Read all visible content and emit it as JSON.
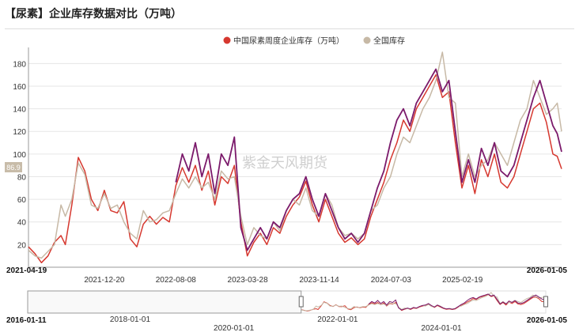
{
  "title": "【尿素】企业库存数据对比（万吨）",
  "watermark": "紫金天风期货",
  "last_value_label": "86.9",
  "chart_data": {
    "type": "line",
    "title": "【尿素】企业库存数据对比（万吨）",
    "xlabel": "",
    "ylabel": "",
    "ylim": [
      0,
      190
    ],
    "yticks": [
      20,
      40,
      60,
      80,
      100,
      120,
      140,
      160,
      180
    ],
    "grid": true,
    "legend": "top-right",
    "x_range": [
      "2021-04-19",
      "2026-01-05"
    ],
    "x_ticks": [
      "2021-04-19",
      "2021-12-20",
      "2022-08-08",
      "2023-03-28",
      "2023-11-14",
      "2024-07-03",
      "2025-02-19",
      "2026-01-05"
    ],
    "navigator": {
      "range": [
        "2016-01-11",
        "2026-01-05"
      ],
      "ticks": [
        "2016-01-11",
        "2018-01-01",
        "2020-01-01",
        "2022-01-01",
        "2024-01-01",
        "2026-01-05"
      ]
    },
    "series": [
      {
        "name": "中国尿素周度企业库存（万吨）",
        "color": "#d6382f",
        "points": [
          [
            "2021-04-19",
            18
          ],
          [
            "2021-05-10",
            12
          ],
          [
            "2021-05-31",
            4
          ],
          [
            "2021-06-21",
            10
          ],
          [
            "2021-07-12",
            22
          ],
          [
            "2021-08-02",
            28
          ],
          [
            "2021-08-16",
            20
          ],
          [
            "2021-09-06",
            55
          ],
          [
            "2021-09-27",
            97
          ],
          [
            "2021-10-18",
            85
          ],
          [
            "2021-11-08",
            60
          ],
          [
            "2021-11-29",
            50
          ],
          [
            "2021-12-20",
            68
          ],
          [
            "2022-01-10",
            50
          ],
          [
            "2022-01-31",
            48
          ],
          [
            "2022-02-21",
            58
          ],
          [
            "2022-03-14",
            25
          ],
          [
            "2022-04-04",
            18
          ],
          [
            "2022-04-25",
            38
          ],
          [
            "2022-05-16",
            45
          ],
          [
            "2022-06-06",
            38
          ],
          [
            "2022-06-27",
            44
          ],
          [
            "2022-07-18",
            40
          ],
          [
            "2022-08-08",
            72
          ],
          [
            "2022-08-29",
            88
          ],
          [
            "2022-09-19",
            75
          ],
          [
            "2022-10-10",
            90
          ],
          [
            "2022-10-31",
            68
          ],
          [
            "2022-11-21",
            85
          ],
          [
            "2022-12-12",
            55
          ],
          [
            "2023-01-02",
            80
          ],
          [
            "2023-01-23",
            74
          ],
          [
            "2023-02-13",
            90
          ],
          [
            "2023-03-06",
            40
          ],
          [
            "2023-03-27",
            10
          ],
          [
            "2023-04-17",
            22
          ],
          [
            "2023-05-08",
            30
          ],
          [
            "2023-05-29",
            20
          ],
          [
            "2023-06-19",
            35
          ],
          [
            "2023-07-10",
            30
          ],
          [
            "2023-07-31",
            45
          ],
          [
            "2023-08-21",
            55
          ],
          [
            "2023-09-11",
            62
          ],
          [
            "2023-10-02",
            76
          ],
          [
            "2023-10-23",
            55
          ],
          [
            "2023-11-13",
            40
          ],
          [
            "2023-12-04",
            60
          ],
          [
            "2023-12-25",
            45
          ],
          [
            "2024-01-15",
            30
          ],
          [
            "2024-02-05",
            22
          ],
          [
            "2024-02-26",
            26
          ],
          [
            "2024-03-18",
            20
          ],
          [
            "2024-04-08",
            25
          ],
          [
            "2024-04-29",
            45
          ],
          [
            "2024-05-20",
            60
          ],
          [
            "2024-06-10",
            75
          ],
          [
            "2024-07-01",
            95
          ],
          [
            "2024-07-22",
            110
          ],
          [
            "2024-08-12",
            130
          ],
          [
            "2024-09-02",
            120
          ],
          [
            "2024-09-23",
            140
          ],
          [
            "2024-10-14",
            150
          ],
          [
            "2024-11-04",
            160
          ],
          [
            "2024-11-25",
            170
          ],
          [
            "2024-12-16",
            150
          ],
          [
            "2025-01-06",
            155
          ],
          [
            "2025-01-27",
            110
          ],
          [
            "2025-02-17",
            70
          ],
          [
            "2025-03-10",
            90
          ],
          [
            "2025-03-31",
            65
          ],
          [
            "2025-04-21",
            95
          ],
          [
            "2025-05-12",
            80
          ],
          [
            "2025-06-02",
            100
          ],
          [
            "2025-06-23",
            75
          ],
          [
            "2025-07-14",
            70
          ],
          [
            "2025-08-04",
            80
          ],
          [
            "2025-08-25",
            100
          ],
          [
            "2025-09-15",
            120
          ],
          [
            "2025-10-06",
            140
          ],
          [
            "2025-10-27",
            145
          ],
          [
            "2025-11-17",
            128
          ],
          [
            "2025-12-08",
            100
          ],
          [
            "2025-12-22",
            98
          ],
          [
            "2026-01-05",
            86.9
          ]
        ]
      },
      {
        "name": "全国库存",
        "color": "#c7b9a6",
        "points": [
          [
            "2021-04-19",
            15
          ],
          [
            "2021-05-10",
            10
          ],
          [
            "2021-05-31",
            8
          ],
          [
            "2021-06-21",
            14
          ],
          [
            "2021-07-12",
            20
          ],
          [
            "2021-08-02",
            55
          ],
          [
            "2021-08-16",
            45
          ],
          [
            "2021-09-06",
            60
          ],
          [
            "2021-09-27",
            92
          ],
          [
            "2021-10-18",
            82
          ],
          [
            "2021-11-08",
            55
          ],
          [
            "2021-11-29",
            52
          ],
          [
            "2021-12-20",
            65
          ],
          [
            "2022-01-10",
            52
          ],
          [
            "2022-01-31",
            55
          ],
          [
            "2022-02-21",
            40
          ],
          [
            "2022-03-14",
            30
          ],
          [
            "2022-04-04",
            25
          ],
          [
            "2022-04-25",
            50
          ],
          [
            "2022-05-16",
            40
          ],
          [
            "2022-06-06",
            42
          ],
          [
            "2022-06-27",
            48
          ],
          [
            "2022-07-18",
            50
          ],
          [
            "2022-08-08",
            65
          ],
          [
            "2022-08-29",
            78
          ],
          [
            "2022-09-19",
            70
          ],
          [
            "2022-10-10",
            80
          ],
          [
            "2022-10-31",
            70
          ],
          [
            "2022-11-21",
            75
          ],
          [
            "2022-12-12",
            60
          ],
          [
            "2023-01-02",
            85
          ],
          [
            "2023-01-23",
            78
          ],
          [
            "2023-02-13",
            80
          ],
          [
            "2023-03-06",
            45
          ],
          [
            "2023-03-27",
            20
          ],
          [
            "2023-04-17",
            35
          ],
          [
            "2023-05-08",
            28
          ],
          [
            "2023-05-29",
            25
          ],
          [
            "2023-06-19",
            40
          ],
          [
            "2023-07-10",
            32
          ],
          [
            "2023-07-31",
            50
          ],
          [
            "2023-08-21",
            60
          ],
          [
            "2023-09-11",
            55
          ],
          [
            "2023-10-02",
            70
          ],
          [
            "2023-10-23",
            50
          ],
          [
            "2023-11-13",
            45
          ],
          [
            "2023-12-04",
            65
          ],
          [
            "2023-12-25",
            55
          ],
          [
            "2024-01-15",
            35
          ],
          [
            "2024-02-05",
            28
          ],
          [
            "2024-02-26",
            30
          ],
          [
            "2024-03-18",
            25
          ],
          [
            "2024-04-08",
            30
          ],
          [
            "2024-04-29",
            50
          ],
          [
            "2024-05-20",
            55
          ],
          [
            "2024-06-10",
            70
          ],
          [
            "2024-07-01",
            80
          ],
          [
            "2024-07-22",
            100
          ],
          [
            "2024-08-12",
            115
          ],
          [
            "2024-09-02",
            110
          ],
          [
            "2024-09-23",
            125
          ],
          [
            "2024-10-14",
            140
          ],
          [
            "2024-11-04",
            150
          ],
          [
            "2024-11-25",
            165
          ],
          [
            "2024-12-16",
            190
          ],
          [
            "2025-01-06",
            150
          ],
          [
            "2025-01-27",
            145
          ],
          [
            "2025-02-17",
            80
          ],
          [
            "2025-03-10",
            100
          ],
          [
            "2025-03-31",
            80
          ],
          [
            "2025-04-21",
            90
          ],
          [
            "2025-05-12",
            95
          ],
          [
            "2025-06-02",
            110
          ],
          [
            "2025-06-23",
            100
          ],
          [
            "2025-07-14",
            90
          ],
          [
            "2025-08-04",
            110
          ],
          [
            "2025-08-25",
            130
          ],
          [
            "2025-09-15",
            140
          ],
          [
            "2025-10-06",
            165
          ],
          [
            "2025-10-27",
            150
          ],
          [
            "2025-11-17",
            135
          ],
          [
            "2025-12-08",
            140
          ],
          [
            "2025-12-22",
            145
          ],
          [
            "2026-01-05",
            120
          ]
        ]
      },
      {
        "name": "",
        "color": "#7b1a6b",
        "points": [
          [
            "2022-08-08",
            75
          ],
          [
            "2022-08-29",
            100
          ],
          [
            "2022-09-19",
            85
          ],
          [
            "2022-10-10",
            110
          ],
          [
            "2022-10-31",
            80
          ],
          [
            "2022-11-21",
            100
          ],
          [
            "2022-12-12",
            65
          ],
          [
            "2023-01-02",
            100
          ],
          [
            "2023-01-23",
            90
          ],
          [
            "2023-02-13",
            115
          ],
          [
            "2023-03-06",
            35
          ],
          [
            "2023-03-27",
            15
          ],
          [
            "2023-04-17",
            25
          ],
          [
            "2023-05-08",
            35
          ],
          [
            "2023-05-29",
            25
          ],
          [
            "2023-06-19",
            40
          ],
          [
            "2023-07-10",
            35
          ],
          [
            "2023-07-31",
            50
          ],
          [
            "2023-08-21",
            60
          ],
          [
            "2023-09-11",
            65
          ],
          [
            "2023-10-02",
            80
          ],
          [
            "2023-10-23",
            60
          ],
          [
            "2023-11-13",
            45
          ],
          [
            "2023-12-04",
            65
          ],
          [
            "2023-12-25",
            50
          ],
          [
            "2024-01-15",
            35
          ],
          [
            "2024-02-05",
            25
          ],
          [
            "2024-02-26",
            30
          ],
          [
            "2024-03-18",
            22
          ],
          [
            "2024-04-08",
            30
          ],
          [
            "2024-04-29",
            50
          ],
          [
            "2024-05-20",
            70
          ],
          [
            "2024-06-10",
            85
          ],
          [
            "2024-07-01",
            110
          ],
          [
            "2024-07-22",
            130
          ],
          [
            "2024-08-12",
            140
          ],
          [
            "2024-09-02",
            125
          ],
          [
            "2024-09-23",
            145
          ],
          [
            "2024-10-14",
            155
          ],
          [
            "2024-11-04",
            165
          ],
          [
            "2024-11-25",
            175
          ],
          [
            "2024-12-16",
            155
          ],
          [
            "2025-01-06",
            165
          ],
          [
            "2025-01-27",
            120
          ],
          [
            "2025-02-17",
            75
          ],
          [
            "2025-03-10",
            95
          ],
          [
            "2025-03-31",
            75
          ],
          [
            "2025-04-21",
            105
          ],
          [
            "2025-05-12",
            90
          ],
          [
            "2025-06-02",
            110
          ],
          [
            "2025-06-23",
            85
          ],
          [
            "2025-07-14",
            80
          ],
          [
            "2025-08-04",
            90
          ],
          [
            "2025-08-25",
            110
          ],
          [
            "2025-09-15",
            130
          ],
          [
            "2025-10-06",
            150
          ],
          [
            "2025-10-27",
            165
          ],
          [
            "2025-11-17",
            145
          ],
          [
            "2025-12-08",
            125
          ],
          [
            "2025-12-22",
            118
          ],
          [
            "2026-01-05",
            102
          ]
        ]
      }
    ]
  }
}
